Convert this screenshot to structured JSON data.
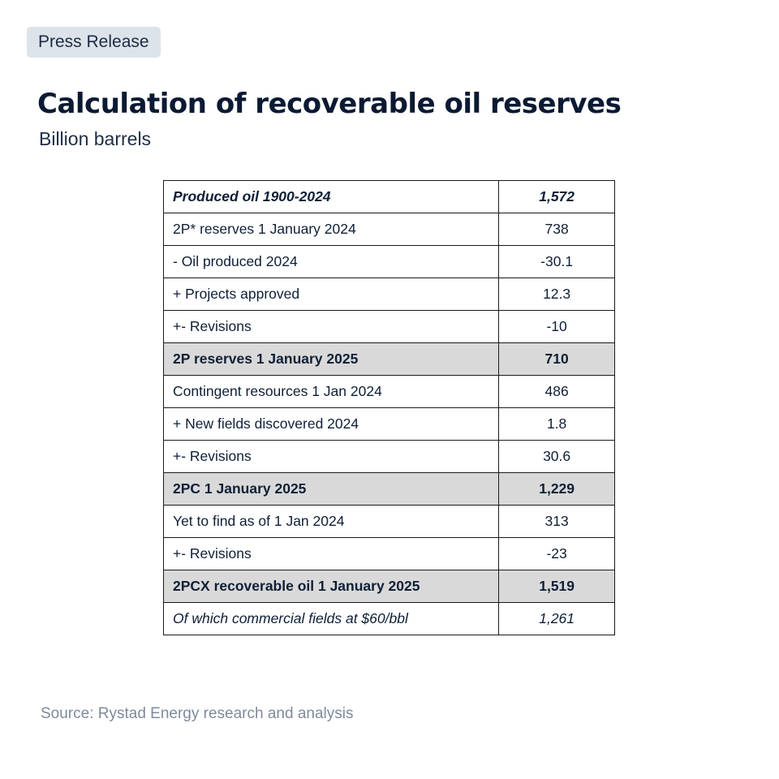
{
  "badge": "Press Release",
  "chart_data": {
    "type": "table",
    "title": "Calculation of recoverable oil reserves",
    "subtitle": "Billion barrels",
    "rows": [
      {
        "label": "Produced oil 1900-2024",
        "value": "1,572",
        "style": "bold-italic"
      },
      {
        "label": "2P* reserves 1 January 2024",
        "value": "738",
        "style": "normal"
      },
      {
        "label": "- Oil produced 2024",
        "value": "-30.1",
        "style": "normal"
      },
      {
        "label": "+ Projects approved",
        "value": "12.3",
        "style": "normal"
      },
      {
        "label": "+- Revisions",
        "value": "-10",
        "style": "normal"
      },
      {
        "label": "2P reserves 1 January 2025",
        "value": "710",
        "style": "bold-shaded"
      },
      {
        "label": "Contingent resources 1 Jan 2024",
        "value": "486",
        "style": "normal"
      },
      {
        "label": "+ New fields discovered 2024",
        "value": "1.8",
        "style": "normal"
      },
      {
        "label": "+- Revisions",
        "value": "30.6",
        "style": "normal"
      },
      {
        "label": "2PC 1 January 2025",
        "value": "1,229",
        "style": "bold-shaded"
      },
      {
        "label": "Yet to find as of 1 Jan 2024",
        "value": "313",
        "style": "normal"
      },
      {
        "label": "+- Revisions",
        "value": "-23",
        "style": "normal"
      },
      {
        "label": "2PCX recoverable oil 1 January 2025",
        "value": "1,519",
        "style": "bold-shaded"
      },
      {
        "label": "Of which commercial fields at $60/bbl",
        "value": "1,261",
        "style": "italic"
      }
    ],
    "shaded_color": "#d9d9d9"
  },
  "source": "Source: Rystad Energy research and analysis"
}
